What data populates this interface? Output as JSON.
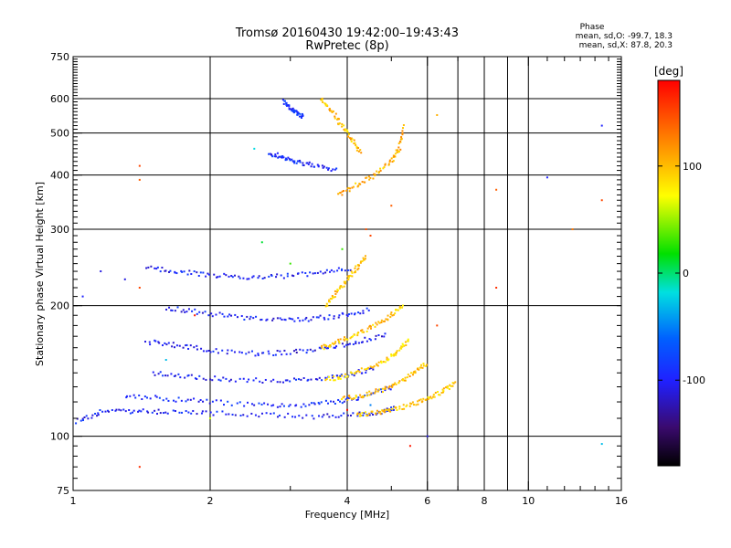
{
  "header": {
    "title": "Tromsø 20160430 19:42:00–19:43:43",
    "subtitle": "RwPretec (8p)"
  },
  "phase_box": {
    "label": "Phase",
    "o_line": "mean, sd,O: -99.7, 18.3",
    "x_line": "mean, sd,X: 87.8, 20.3"
  },
  "colorbar": {
    "label": "[deg]",
    "range": [
      -180,
      180
    ],
    "ticks": [
      -100,
      0,
      100
    ],
    "tick_labels": [
      "-100",
      "0",
      "100"
    ]
  },
  "chart_data": {
    "type": "scatter",
    "xlabel": "Frequency [MHz]",
    "ylabel": "Stationary phase Virtual Height [km]",
    "xscale": "log",
    "yscale": "log",
    "xlim": [
      1,
      16
    ],
    "ylim": [
      75,
      750
    ],
    "grid": true,
    "x_ticks": [
      1,
      2,
      4,
      6,
      8,
      10,
      16
    ],
    "x_tick_labels": [
      "1",
      "2",
      "4",
      "6",
      "8",
      "10",
      "16"
    ],
    "y_ticks": [
      75,
      100,
      200,
      300,
      400,
      500,
      600,
      750
    ],
    "y_tick_labels": [
      "75",
      "100",
      "200",
      "300",
      "400",
      "500",
      "600",
      "750"
    ],
    "traces": [
      {
        "x": [
          1.02,
          1.15,
          1.35,
          1.6,
          2.0,
          2.6,
          3.4,
          4.2,
          4.8,
          5.1
        ],
        "y": [
          108,
          114,
          114,
          114,
          113,
          112,
          111,
          112,
          114,
          116
        ],
        "phase": -100
      },
      {
        "x": [
          1.3,
          1.6,
          2.0,
          2.6,
          3.2,
          3.8,
          4.4,
          5.1
        ],
        "y": [
          124,
          122,
          120,
          118,
          118,
          120,
          124,
          130
        ],
        "phase": -95
      },
      {
        "x": [
          1.5,
          1.8,
          2.2,
          2.8,
          3.4,
          4.0,
          4.6
        ],
        "y": [
          140,
          137,
          135,
          134,
          135,
          138,
          144
        ],
        "phase": -100
      },
      {
        "x": [
          1.45,
          1.7,
          2.0,
          2.5,
          3.0,
          3.6,
          4.2,
          4.9
        ],
        "y": [
          165,
          162,
          158,
          155,
          156,
          160,
          165,
          172
        ],
        "phase": -105
      },
      {
        "x": [
          1.6,
          1.9,
          2.3,
          2.8,
          3.3,
          3.9,
          4.5
        ],
        "y": [
          198,
          193,
          188,
          185,
          186,
          190,
          196
        ],
        "phase": -100
      },
      {
        "x": [
          1.45,
          1.7,
          2.0,
          2.4,
          2.9,
          3.5,
          4.1
        ],
        "y": [
          245,
          240,
          235,
          232,
          234,
          238,
          244
        ],
        "phase": -100
      },
      {
        "x": [
          2.7,
          2.9,
          3.1,
          3.4,
          3.8
        ],
        "y": [
          450,
          440,
          430,
          420,
          410
        ],
        "phase": -95
      },
      {
        "x": [
          2.9,
          3.0,
          3.1,
          3.2
        ],
        "y": [
          590,
          570,
          555,
          545
        ],
        "phase": -90
      },
      {
        "x": [
          4.2,
          4.6,
          5.0,
          5.5,
          6.0,
          6.5,
          6.9
        ],
        "y": [
          112,
          113,
          115,
          118,
          122,
          127,
          133
        ],
        "phase": 95
      },
      {
        "x": [
          3.9,
          4.3,
          4.8,
          5.2,
          5.6,
          6.0
        ],
        "y": [
          122,
          124,
          128,
          133,
          140,
          148
        ],
        "phase": 100
      },
      {
        "x": [
          3.6,
          4.0,
          4.5,
          4.9,
          5.2,
          5.5
        ],
        "y": [
          135,
          138,
          144,
          150,
          158,
          168
        ],
        "phase": 90
      },
      {
        "x": [
          3.5,
          3.8,
          4.2,
          4.6,
          5.0,
          5.3
        ],
        "y": [
          160,
          165,
          172,
          180,
          190,
          200
        ],
        "phase": 95
      },
      {
        "x": [
          3.6,
          3.8,
          4.0,
          4.2,
          4.4
        ],
        "y": [
          200,
          215,
          230,
          245,
          260
        ],
        "phase": 100
      },
      {
        "x": [
          3.8,
          4.2,
          4.6,
          5.0,
          5.2,
          5.3
        ],
        "y": [
          360,
          380,
          400,
          430,
          460,
          520
        ],
        "phase": 105
      },
      {
        "x": [
          3.5,
          3.7,
          3.9,
          4.1,
          4.3
        ],
        "y": [
          600,
          560,
          520,
          480,
          450
        ],
        "phase": 100
      }
    ],
    "scatter": [
      {
        "x": 1.4,
        "y": 420,
        "phase": 150
      },
      {
        "x": 1.4,
        "y": 390,
        "phase": 140
      },
      {
        "x": 1.4,
        "y": 85,
        "phase": 160
      },
      {
        "x": 1.4,
        "y": 220,
        "phase": 150
      },
      {
        "x": 1.3,
        "y": 230,
        "phase": -110
      },
      {
        "x": 1.15,
        "y": 240,
        "phase": -110
      },
      {
        "x": 1.05,
        "y": 210,
        "phase": -100
      },
      {
        "x": 6.3,
        "y": 550,
        "phase": 105
      },
      {
        "x": 6.3,
        "y": 180,
        "phase": 150
      },
      {
        "x": 6.0,
        "y": 100,
        "phase": -110
      },
      {
        "x": 5.5,
        "y": 95,
        "phase": 170
      },
      {
        "x": 8.5,
        "y": 370,
        "phase": 140
      },
      {
        "x": 8.5,
        "y": 220,
        "phase": 160
      },
      {
        "x": 11.0,
        "y": 395,
        "phase": -100
      },
      {
        "x": 12.5,
        "y": 300,
        "phase": 130
      },
      {
        "x": 14.5,
        "y": 520,
        "phase": -100
      },
      {
        "x": 14.5,
        "y": 350,
        "phase": 150
      },
      {
        "x": 14.5,
        "y": 96,
        "phase": -30
      },
      {
        "x": 4.5,
        "y": 290,
        "phase": 150
      },
      {
        "x": 4.4,
        "y": 300,
        "phase": 145
      },
      {
        "x": 5.0,
        "y": 340,
        "phase": 140
      },
      {
        "x": 3.0,
        "y": 250,
        "phase": 30
      },
      {
        "x": 3.9,
        "y": 270,
        "phase": 30
      },
      {
        "x": 4.5,
        "y": 118,
        "phase": -50
      },
      {
        "x": 4.0,
        "y": 115,
        "phase": 175
      },
      {
        "x": 1.85,
        "y": 190,
        "phase": 170
      },
      {
        "x": 1.6,
        "y": 150,
        "phase": -30
      },
      {
        "x": 2.0,
        "y": 110,
        "phase": 60
      },
      {
        "x": 2.6,
        "y": 280,
        "phase": 10
      },
      {
        "x": 2.5,
        "y": 460,
        "phase": -20
      }
    ]
  }
}
